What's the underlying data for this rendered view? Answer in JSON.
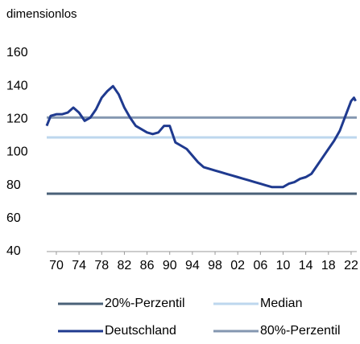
{
  "chart_data": {
    "type": "line",
    "ylabel": "dimensionlos",
    "x": [
      1968.3,
      1969,
      1970,
      1971,
      1972,
      1973,
      1974,
      1975,
      1976,
      1977,
      1978,
      1979,
      1980,
      1981,
      1982,
      1983,
      1984,
      1985,
      1986,
      1987,
      1988,
      1989,
      1990,
      1991,
      1992,
      1993,
      1994,
      1995,
      1996,
      1997,
      1998,
      1999,
      2000,
      2001,
      2002,
      2003,
      2004,
      2005,
      2006,
      2007,
      2008,
      2009,
      2010,
      2011,
      2012,
      2013,
      2014,
      2015,
      2016,
      2017,
      2018,
      2019,
      2020,
      2021,
      2022,
      2022.5,
      2022.8
    ],
    "series": [
      {
        "name": "20%-Perzentil",
        "color": "#4a6178",
        "value": 75
      },
      {
        "name": "Median",
        "color": "#bdd7ee",
        "value": 109
      },
      {
        "name": "Deutschland",
        "color": "#1f3a8f",
        "values": [
          116,
          122,
          123,
          123,
          124,
          127,
          124,
          119,
          121,
          126,
          133,
          137,
          140,
          135,
          127,
          121,
          116,
          114,
          112,
          111,
          112,
          116,
          116,
          106,
          104,
          102,
          98,
          94,
          91,
          90,
          89,
          88,
          87,
          86,
          85,
          84,
          83,
          82,
          81,
          80,
          79,
          79,
          79,
          81,
          82,
          84,
          85,
          87,
          92,
          97,
          102,
          107,
          113,
          122,
          131,
          133,
          131
        ]
      },
      {
        "name": "80%-Perzentil",
        "color": "#8497b0",
        "value": 121
      }
    ],
    "xlim": [
      1968.3,
      2023
    ],
    "xticks": [
      {
        "value": 1970,
        "label": "70"
      },
      {
        "value": 1974,
        "label": "74"
      },
      {
        "value": 1978,
        "label": "78"
      },
      {
        "value": 1982,
        "label": "82"
      },
      {
        "value": 1986,
        "label": "86"
      },
      {
        "value": 1990,
        "label": "90"
      },
      {
        "value": 1994,
        "label": "94"
      },
      {
        "value": 1998,
        "label": "98"
      },
      {
        "value": 2002,
        "label": "02"
      },
      {
        "value": 2006,
        "label": "06"
      },
      {
        "value": 2010,
        "label": "10"
      },
      {
        "value": 2014,
        "label": "14"
      },
      {
        "value": 2018,
        "label": "18"
      },
      {
        "value": 2022,
        "label": "22"
      }
    ],
    "ylim": [
      40,
      160
    ],
    "yticks": [
      40,
      60,
      80,
      100,
      120,
      140,
      160
    ],
    "grid": false
  }
}
